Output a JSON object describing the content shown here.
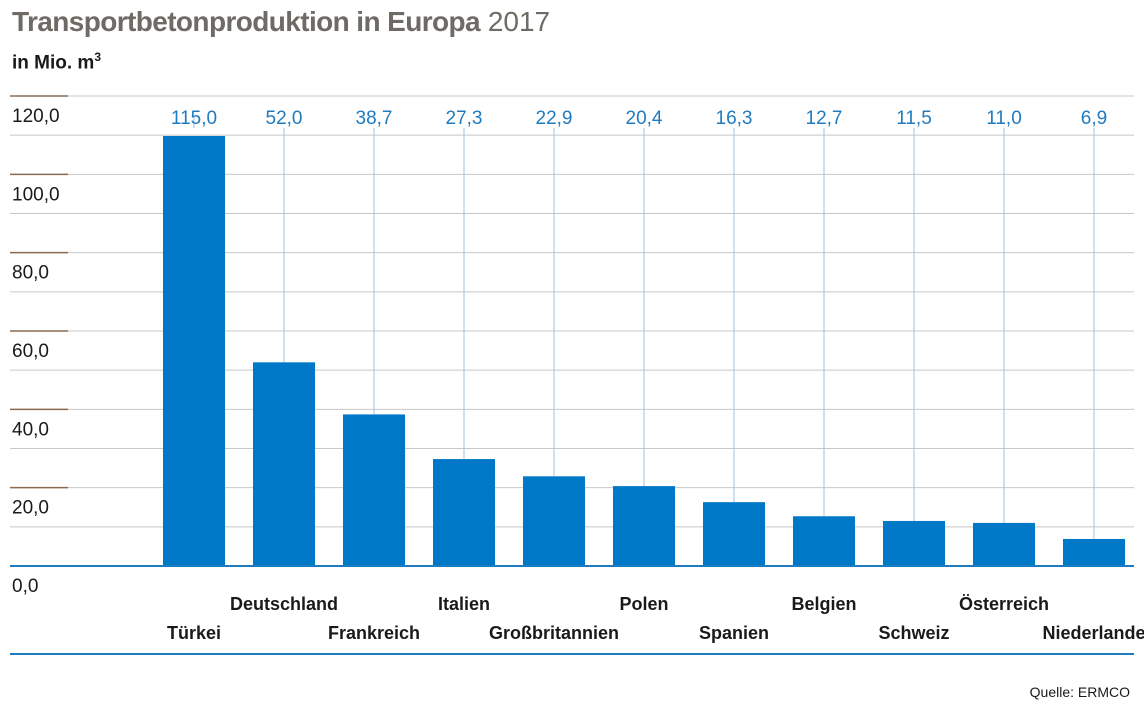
{
  "header": {
    "title_main": "Transportbetonproduktion in Europa",
    "title_year": "2017",
    "unit_prefix": "in Mio. m",
    "unit_sup": "3"
  },
  "footer": {
    "source": "Quelle: ERMCO"
  },
  "colors": {
    "bar": "#0078c8",
    "value_label": "#1f7bc0",
    "axis": "#1f7bc0",
    "grid": "#c8c8c8",
    "tick_mark": "#8a6a50"
  },
  "chart_data": {
    "type": "bar",
    "categories": [
      "Türkei",
      "Deutschland",
      "Frankreich",
      "Italien",
      "Großbritannien",
      "Polen",
      "Spanien",
      "Belgien",
      "Schweiz",
      "Österreich",
      "Niederlande"
    ],
    "values": [
      115.0,
      52.0,
      38.7,
      27.3,
      22.9,
      20.4,
      16.3,
      12.7,
      11.5,
      11.0,
      6.9
    ],
    "value_labels": [
      "115,0",
      "52,0",
      "38,7",
      "27,3",
      "22,9",
      "20,4",
      "16,3",
      "12,7",
      "11,5",
      "11,0",
      "6,9"
    ],
    "yticks": [
      0,
      20,
      40,
      60,
      80,
      100,
      120
    ],
    "ytick_labels": [
      "0,0",
      "20,0",
      "40,0",
      "60,0",
      "80,0",
      "100,0",
      "120,0"
    ],
    "ylim": [
      0,
      120
    ],
    "title": "Transportbetonproduktion in Europa 2017",
    "ylabel": "in Mio. m³",
    "xlabel": "",
    "grid": true,
    "legend": "none"
  }
}
